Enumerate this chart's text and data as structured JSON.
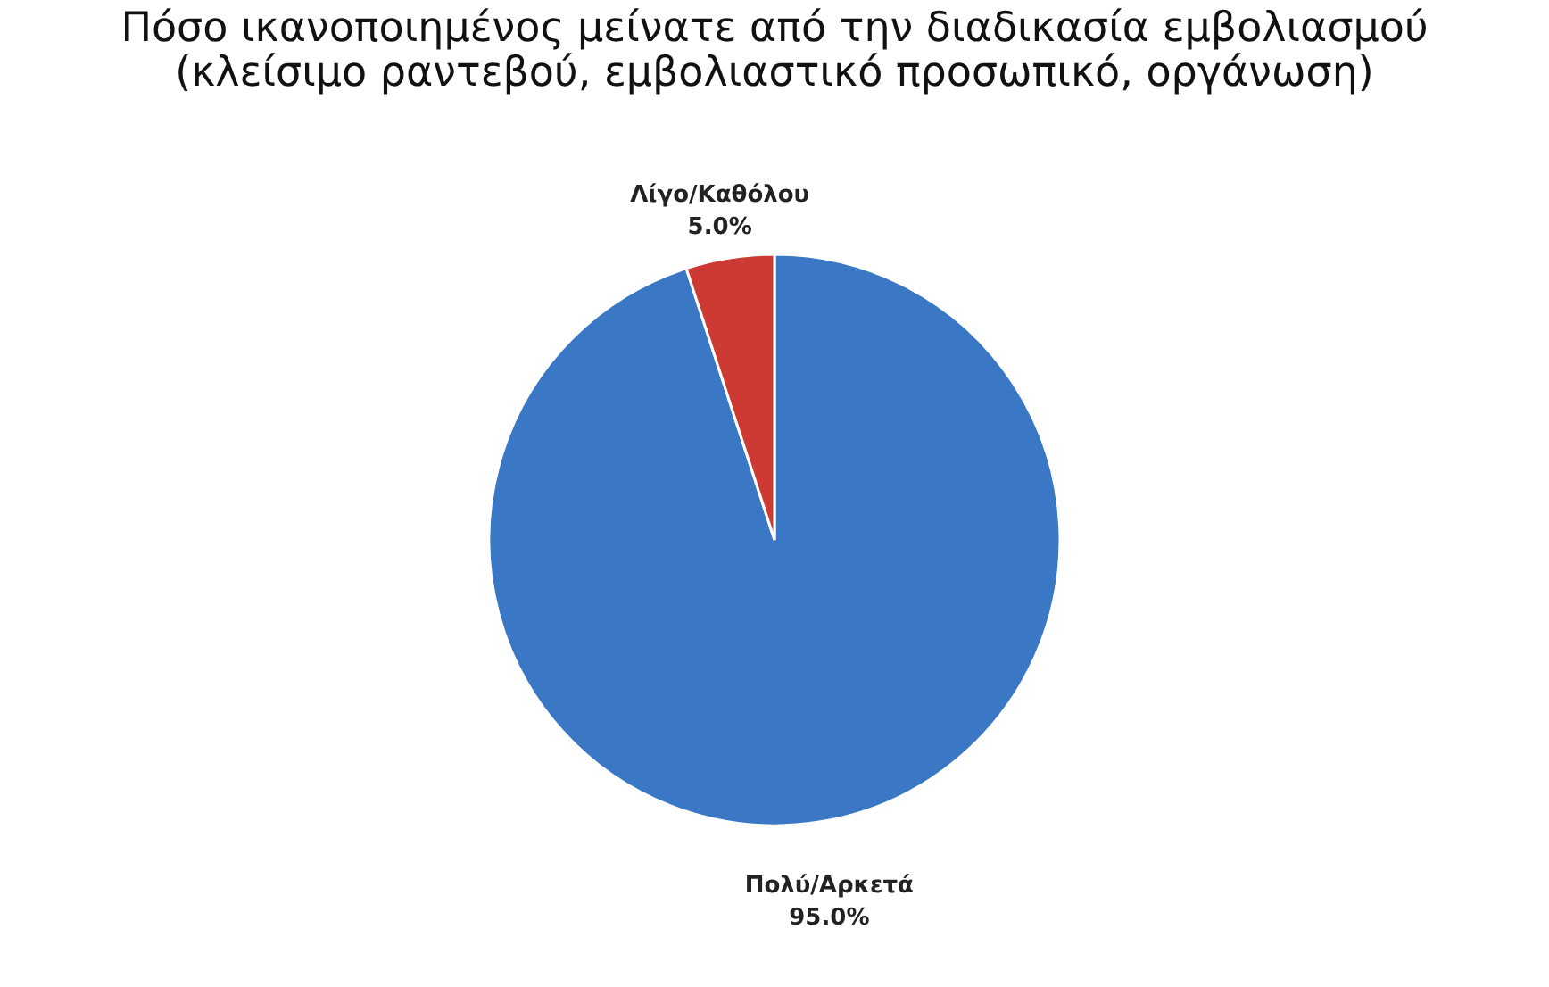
{
  "chart_data": {
    "type": "pie",
    "title": [
      "Πόσο ικανοποιημένος μείνατε από την διαδικασία εμβολιασμού",
      "(κλείσιμο ραντεβού, εμβολιαστικό προσωπικό, οργάνωση)"
    ],
    "categories": [
      "Πολύ/Αρκετά",
      "Λίγο/Καθόλου"
    ],
    "values": [
      95,
      5
    ],
    "colors": [
      "#3a78c6",
      "#cc3a33"
    ],
    "value_labels": [
      "95.0%",
      "5.0%"
    ],
    "legend": false
  }
}
